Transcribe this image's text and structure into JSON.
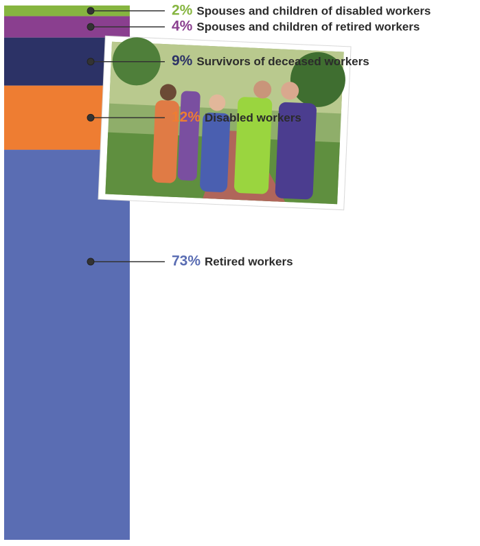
{
  "chart_data": {
    "type": "stacked-bar",
    "ylim": [
      0,
      100
    ],
    "series": [
      {
        "name": "Retired workers",
        "color": "#5a6db3",
        "values": [
          73
        ],
        "value_labels": [
          "73%"
        ]
      },
      {
        "name": "Disabled workers",
        "color": "#ee7d32",
        "values": [
          12
        ],
        "value_labels": [
          "12%"
        ]
      },
      {
        "name": "Survivors of deceased workers",
        "color": "#2c3266",
        "values": [
          9
        ],
        "value_labels": [
          "9%"
        ]
      },
      {
        "name": "Spouses and children of retired workers",
        "color": "#8a3f8f",
        "values": [
          4
        ],
        "value_labels": [
          "4%"
        ]
      },
      {
        "name": "Spouses and children of disabled workers",
        "color": "#86b540",
        "values": [
          2
        ],
        "value_labels": [
          "2%"
        ]
      }
    ]
  }
}
